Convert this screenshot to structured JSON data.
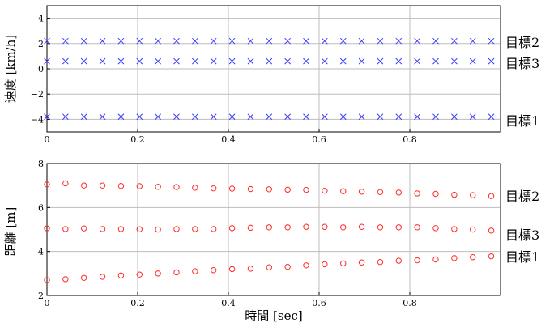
{
  "chart_data": [
    {
      "type": "scatter",
      "ylabel": "速度 [km/h]",
      "xlim": [
        0,
        1
      ],
      "ylim": [
        -5,
        5
      ],
      "xticks": [
        "0",
        "0.2",
        "0.4",
        "0.6",
        "0.8"
      ],
      "yticks": [
        "4",
        "2",
        "0",
        "−2",
        "−4"
      ],
      "grid": true,
      "marker": "x",
      "color": "#3b3bff",
      "x": [
        0.0,
        0.0408,
        0.0816,
        0.1224,
        0.1633,
        0.2041,
        0.2449,
        0.2857,
        0.3265,
        0.3673,
        0.4082,
        0.449,
        0.4898,
        0.5306,
        0.5714,
        0.6122,
        0.6531,
        0.6939,
        0.7347,
        0.7755,
        0.8163,
        0.8571,
        0.898,
        0.9388,
        0.9796
      ],
      "series": [
        {
          "name": "目標2",
          "values": [
            2.2,
            2.2,
            2.2,
            2.2,
            2.2,
            2.2,
            2.2,
            2.2,
            2.2,
            2.2,
            2.2,
            2.2,
            2.2,
            2.2,
            2.2,
            2.2,
            2.2,
            2.2,
            2.2,
            2.2,
            2.2,
            2.2,
            2.2,
            2.2,
            2.2
          ]
        },
        {
          "name": "目標3",
          "values": [
            0.6,
            0.6,
            0.6,
            0.6,
            0.6,
            0.6,
            0.6,
            0.6,
            0.6,
            0.6,
            0.6,
            0.6,
            0.6,
            0.6,
            0.6,
            0.6,
            0.6,
            0.6,
            0.6,
            0.6,
            0.6,
            0.6,
            0.6,
            0.6,
            0.6
          ]
        },
        {
          "name": "目標1",
          "values": [
            -3.8,
            -3.8,
            -3.8,
            -3.8,
            -3.8,
            -3.8,
            -3.8,
            -3.8,
            -3.8,
            -3.8,
            -3.8,
            -3.8,
            -3.8,
            -3.8,
            -3.8,
            -3.8,
            -3.8,
            -3.8,
            -3.8,
            -3.8,
            -3.8,
            -3.8,
            -3.8,
            -3.8,
            -3.8
          ]
        }
      ]
    },
    {
      "type": "scatter",
      "xlabel": "時間 [sec]",
      "ylabel": "距離 [m]",
      "xlim": [
        0,
        1
      ],
      "ylim": [
        2,
        8
      ],
      "xticks": [
        "0",
        "0.2",
        "0.4",
        "0.6",
        "0.8"
      ],
      "yticks": [
        "8",
        "6",
        "4",
        "2"
      ],
      "grid": true,
      "marker": "o",
      "color": "#ff2a2a",
      "x": [
        0.0,
        0.0408,
        0.0816,
        0.1224,
        0.1633,
        0.2041,
        0.2449,
        0.2857,
        0.3265,
        0.3673,
        0.4082,
        0.449,
        0.4898,
        0.5306,
        0.5714,
        0.6122,
        0.6531,
        0.6939,
        0.7347,
        0.7755,
        0.8163,
        0.8571,
        0.898,
        0.9388,
        0.9796
      ],
      "series": [
        {
          "name": "目標2",
          "values": [
            7.05,
            7.1,
            7.0,
            7.0,
            6.98,
            6.97,
            6.94,
            6.93,
            6.9,
            6.87,
            6.86,
            6.84,
            6.83,
            6.81,
            6.8,
            6.76,
            6.74,
            6.72,
            6.7,
            6.68,
            6.64,
            6.62,
            6.58,
            6.56,
            6.52
          ]
        },
        {
          "name": "目標3",
          "values": [
            5.05,
            5.02,
            5.05,
            5.02,
            5.02,
            5.01,
            5.0,
            5.02,
            5.02,
            5.02,
            5.06,
            5.08,
            5.1,
            5.1,
            5.12,
            5.12,
            5.1,
            5.12,
            5.1,
            5.1,
            5.1,
            5.06,
            5.02,
            5.0,
            4.95
          ]
        },
        {
          "name": "目標1",
          "values": [
            2.7,
            2.74,
            2.8,
            2.85,
            2.91,
            2.95,
            3.0,
            3.05,
            3.1,
            3.15,
            3.2,
            3.22,
            3.28,
            3.3,
            3.37,
            3.42,
            3.46,
            3.5,
            3.52,
            3.58,
            3.6,
            3.64,
            3.7,
            3.74,
            3.78
          ]
        }
      ]
    }
  ],
  "legend": {
    "top": {
      "target2": "目標2",
      "target3": "目標3",
      "target1": "目標1"
    },
    "bottom": {
      "target2": "目標2",
      "target3": "目標3",
      "target1": "目標1"
    }
  }
}
